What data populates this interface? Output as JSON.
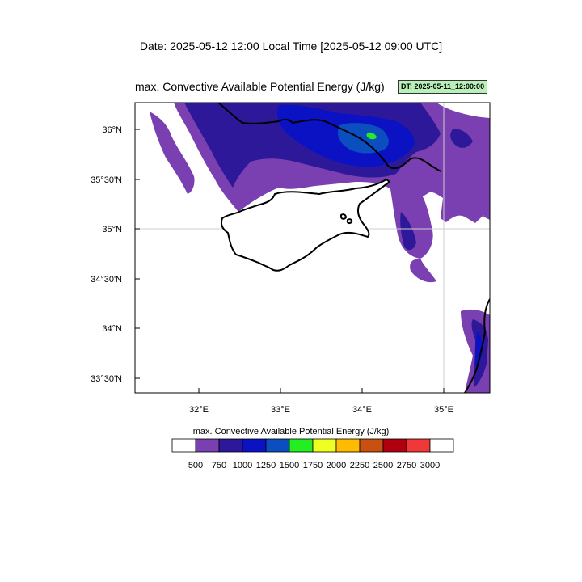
{
  "header": {
    "date_line": "Date: 2025-05-12  12:00 Local Time [2025-05-12  09:00 UTC]"
  },
  "map": {
    "title": "max. Convective Available Potential Energy   (J/kg)",
    "dt_badge": "DT: 2025-05-11_12:00:00",
    "lon_labels": [
      "32°E",
      "33°E",
      "34°E",
      "35°E"
    ],
    "lat_labels": [
      "36°N",
      "35°30'N",
      "35°N",
      "34°30'N",
      "34°N",
      "33°30'N"
    ]
  },
  "colorbar": {
    "title": "max. Convective Available Potential Energy  (J/kg)",
    "colors": [
      "#ffffff",
      "#7a3fb0",
      "#2c1898",
      "#0a12c4",
      "#0a4ec0",
      "#22ee22",
      "#eeff22",
      "#ffbb00",
      "#c85010",
      "#b00010",
      "#f03838",
      "#ffffff"
    ],
    "tick_labels": [
      "500",
      "750",
      "1000",
      "1250",
      "1500",
      "1750",
      "2000",
      "2250",
      "2500",
      "2750",
      "3000"
    ]
  }
}
